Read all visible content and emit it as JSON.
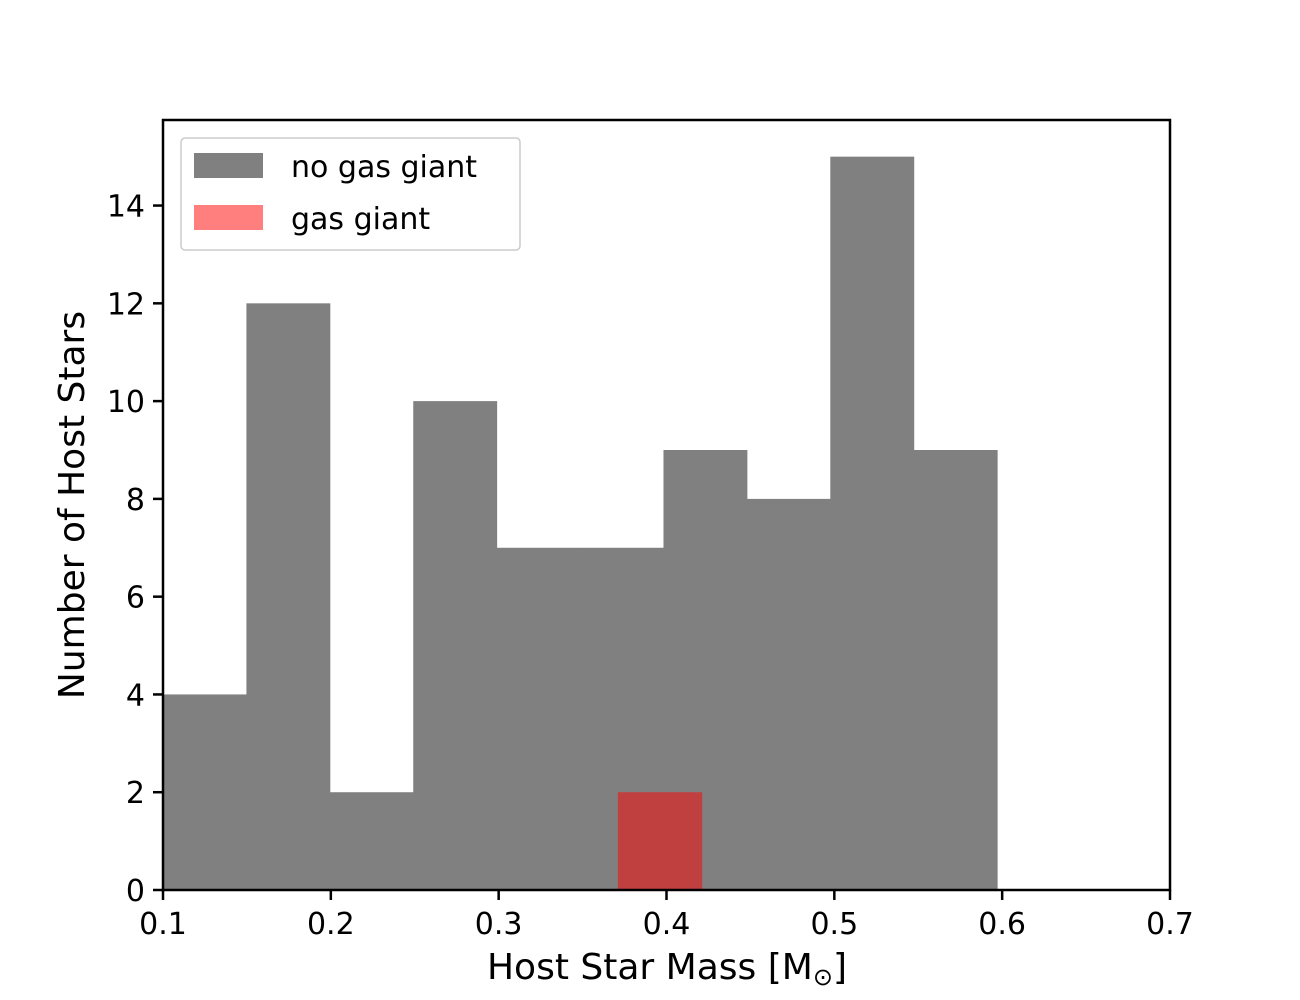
{
  "chart_data": {
    "type": "bar",
    "xlabel": "Host Star Mass [M",
    "xlabel_subscript": "⊙",
    "xlabel_suffix": "]",
    "ylabel": "Number of Host Stars",
    "xlim": [
      0.1,
      0.7
    ],
    "ylim": [
      0,
      15.75
    ],
    "xticks": [
      "0.1",
      "0.2",
      "0.3",
      "0.4",
      "0.5",
      "0.6",
      "0.7"
    ],
    "yticks": [
      "0",
      "2",
      "4",
      "6",
      "8",
      "10",
      "12",
      "14"
    ],
    "legend_position": "top-left",
    "series": [
      {
        "name": "no gas giant",
        "color": "#808080",
        "bin_edges": [
          0.1,
          0.1497,
          0.1994,
          0.2491,
          0.2988,
          0.3485,
          0.3982,
          0.4479,
          0.4976,
          0.5473,
          0.597
        ],
        "values": [
          4,
          12,
          2,
          10,
          7,
          7,
          9,
          8,
          15,
          9
        ]
      },
      {
        "name": "gas giant",
        "color": "#ff0000",
        "opacity": 0.5,
        "bin_edges": [
          0.371,
          0.421
        ],
        "values": [
          2
        ]
      }
    ]
  }
}
